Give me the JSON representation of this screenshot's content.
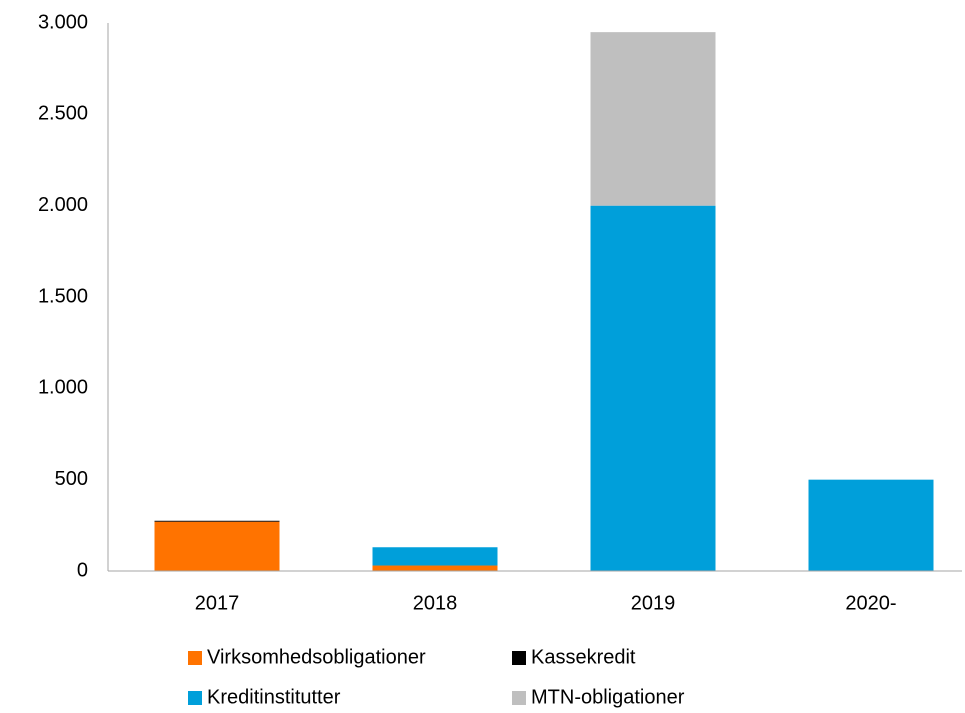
{
  "chart_data": {
    "type": "stacked_bar",
    "categories": [
      "2017",
      "2018",
      "2019",
      "2020-"
    ],
    "series": [
      {
        "name": "Virksomhedsobligationer",
        "color": "#ff7300",
        "values": [
          270,
          30,
          0,
          0
        ]
      },
      {
        "name": "Kassekredit",
        "color": "#000000",
        "values": [
          5,
          0,
          0,
          0
        ]
      },
      {
        "name": "Kreditinstitutter",
        "color": "#009fda",
        "values": [
          0,
          100,
          2000,
          500
        ]
      },
      {
        "name": "MTN-obligationer",
        "color": "#bfbfbf",
        "values": [
          0,
          0,
          950,
          0
        ]
      }
    ],
    "ylim": [
      0,
      3000
    ],
    "yticks": [
      0,
      500,
      {
        "value": 1000,
        "label": "1.000"
      },
      {
        "value": 1500,
        "label": "1.500"
      },
      {
        "value": 2000,
        "label": "2.000"
      },
      {
        "value": 2500,
        "label": "2.500"
      },
      {
        "value": 3000,
        "label": "3.000"
      }
    ],
    "grid": false,
    "legend": "bottom"
  }
}
